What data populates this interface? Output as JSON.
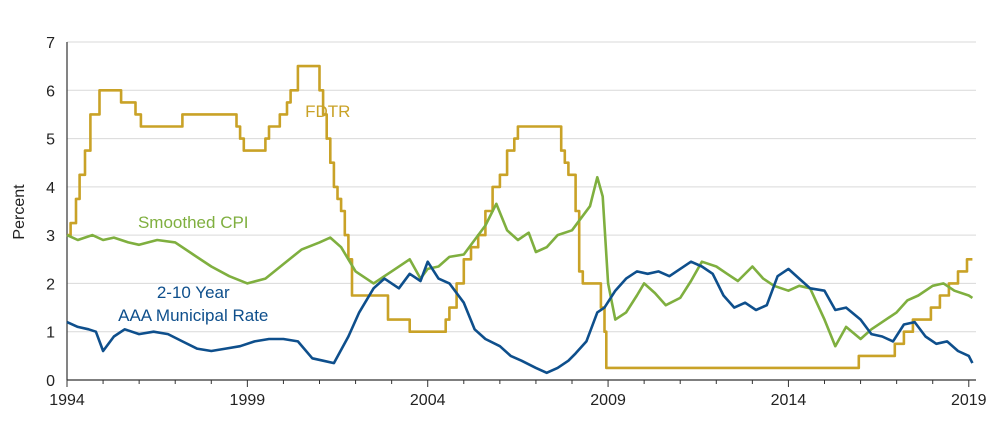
{
  "chart_data": {
    "type": "line",
    "title": "",
    "xlabel": "",
    "ylabel": "Percent",
    "xlim": [
      1994,
      2019.2
    ],
    "ylim": [
      0,
      7
    ],
    "grid": "horizontal",
    "x_ticks": [
      1994,
      1999,
      2004,
      2009,
      2014,
      2019
    ],
    "x_tick_labels": [
      "1994",
      "1999",
      "2004",
      "2009",
      "2014",
      "2019"
    ],
    "y_ticks": [
      0,
      1,
      2,
      3,
      4,
      5,
      6,
      7
    ],
    "y_tick_labels": [
      "0",
      "1",
      "2",
      "3",
      "4",
      "5",
      "6",
      "7"
    ],
    "series": [
      {
        "name": "FDTR",
        "label_lines": [
          "FDTR"
        ],
        "color": "#C9A227",
        "step": true,
        "x": [
          1994.0,
          1994.1,
          1994.25,
          1994.35,
          1994.5,
          1994.65,
          1994.9,
          1995.1,
          1995.5,
          1995.9,
          1996.05,
          1997.2,
          1998.7,
          1998.8,
          1998.9,
          1999.5,
          1999.6,
          1999.9,
          2000.1,
          2000.2,
          2000.4,
          2001.0,
          2001.1,
          2001.2,
          2001.3,
          2001.4,
          2001.5,
          2001.6,
          2001.7,
          2001.8,
          2001.9,
          2002.9,
          2003.5,
          2004.5,
          2004.6,
          2004.8,
          2005.0,
          2005.2,
          2005.4,
          2005.6,
          2005.8,
          2006.0,
          2006.2,
          2006.4,
          2006.5,
          2007.7,
          2007.8,
          2007.9,
          2008.1,
          2008.2,
          2008.3,
          2008.8,
          2008.9,
          2008.95,
          2015.95,
          2016.95,
          2017.2,
          2017.45,
          2017.95,
          2018.2,
          2018.45,
          2018.7,
          2018.95,
          2019.1
        ],
        "y": [
          3.0,
          3.25,
          3.75,
          4.25,
          4.75,
          5.5,
          6.0,
          6.0,
          5.75,
          5.5,
          5.25,
          5.5,
          5.25,
          5.0,
          4.75,
          5.0,
          5.25,
          5.5,
          5.75,
          6.0,
          6.5,
          6.0,
          5.5,
          5.0,
          4.5,
          4.0,
          3.75,
          3.5,
          3.0,
          2.5,
          1.75,
          1.25,
          1.0,
          1.25,
          1.5,
          2.0,
          2.5,
          2.75,
          3.0,
          3.5,
          4.0,
          4.25,
          4.75,
          5.0,
          5.25,
          4.75,
          4.5,
          4.25,
          3.5,
          2.25,
          2.0,
          1.5,
          1.0,
          0.25,
          0.5,
          0.75,
          1.0,
          1.25,
          1.5,
          1.75,
          2.0,
          2.25,
          2.5,
          2.5
        ]
      },
      {
        "name": "Smoothed CPI",
        "label_lines": [
          "Smoothed CPI"
        ],
        "color": "#7FAF3F",
        "step": false,
        "x": [
          1994.0,
          1994.3,
          1994.7,
          1995.0,
          1995.3,
          1995.7,
          1996.0,
          1996.5,
          1997.0,
          1997.5,
          1998.0,
          1998.5,
          1999.0,
          1999.5,
          2000.0,
          2000.5,
          2001.0,
          2001.3,
          2001.6,
          2002.0,
          2002.5,
          2003.0,
          2003.5,
          2003.8,
          2004.0,
          2004.3,
          2004.6,
          2005.0,
          2005.3,
          2005.6,
          2005.9,
          2006.2,
          2006.5,
          2006.8,
          2007.0,
          2007.3,
          2007.6,
          2008.0,
          2008.3,
          2008.5,
          2008.7,
          2008.85,
          2009.0,
          2009.2,
          2009.5,
          2009.8,
          2010.0,
          2010.3,
          2010.6,
          2011.0,
          2011.3,
          2011.6,
          2012.0,
          2012.3,
          2012.6,
          2013.0,
          2013.3,
          2013.6,
          2014.0,
          2014.3,
          2014.6,
          2015.0,
          2015.3,
          2015.6,
          2016.0,
          2016.3,
          2016.6,
          2017.0,
          2017.3,
          2017.6,
          2018.0,
          2018.3,
          2018.6,
          2019.0,
          2019.1
        ],
        "y": [
          3.0,
          2.9,
          3.0,
          2.9,
          2.95,
          2.85,
          2.8,
          2.9,
          2.85,
          2.6,
          2.35,
          2.15,
          2.0,
          2.1,
          2.4,
          2.7,
          2.85,
          2.95,
          2.75,
          2.25,
          2.0,
          2.25,
          2.5,
          2.1,
          2.3,
          2.35,
          2.55,
          2.6,
          2.9,
          3.2,
          3.65,
          3.1,
          2.9,
          3.05,
          2.65,
          2.75,
          3.0,
          3.1,
          3.4,
          3.6,
          4.2,
          3.8,
          2.0,
          1.25,
          1.4,
          1.75,
          2.0,
          1.8,
          1.55,
          1.7,
          2.05,
          2.45,
          2.35,
          2.2,
          2.05,
          2.35,
          2.1,
          1.95,
          1.85,
          1.95,
          1.9,
          1.25,
          0.7,
          1.1,
          0.85,
          1.05,
          1.2,
          1.4,
          1.65,
          1.75,
          1.95,
          2.0,
          1.85,
          1.75,
          1.7
        ]
      },
      {
        "name": "2-10 Year AAA Municipal Rate",
        "label_lines": [
          "2-10 Year",
          "AAA Municipal Rate"
        ],
        "color": "#0E4F8C",
        "step": false,
        "x": [
          1994.0,
          1994.3,
          1994.6,
          1994.8,
          1995.0,
          1995.3,
          1995.6,
          1996.0,
          1996.4,
          1996.8,
          1997.2,
          1997.6,
          1998.0,
          1998.4,
          1998.8,
          1999.2,
          1999.6,
          2000.0,
          2000.4,
          2000.8,
          2001.1,
          2001.4,
          2001.8,
          2002.1,
          2002.5,
          2002.8,
          2003.2,
          2003.5,
          2003.8,
          2004.0,
          2004.3,
          2004.6,
          2005.0,
          2005.3,
          2005.6,
          2006.0,
          2006.3,
          2006.6,
          2007.0,
          2007.3,
          2007.6,
          2007.9,
          2008.1,
          2008.4,
          2008.7,
          2008.9,
          2009.2,
          2009.5,
          2009.8,
          2010.1,
          2010.4,
          2010.7,
          2011.0,
          2011.3,
          2011.6,
          2011.9,
          2012.2,
          2012.5,
          2012.8,
          2013.1,
          2013.4,
          2013.7,
          2014.0,
          2014.3,
          2014.6,
          2015.0,
          2015.3,
          2015.6,
          2016.0,
          2016.3,
          2016.6,
          2016.9,
          2017.2,
          2017.5,
          2017.8,
          2018.1,
          2018.4,
          2018.7,
          2019.0,
          2019.1
        ],
        "y": [
          1.2,
          1.1,
          1.05,
          1.0,
          0.6,
          0.9,
          1.05,
          0.95,
          1.0,
          0.95,
          0.8,
          0.65,
          0.6,
          0.65,
          0.7,
          0.8,
          0.85,
          0.85,
          0.8,
          0.45,
          0.4,
          0.35,
          0.9,
          1.4,
          1.9,
          2.1,
          1.9,
          2.2,
          2.05,
          2.45,
          2.1,
          2.0,
          1.6,
          1.05,
          0.85,
          0.7,
          0.5,
          0.4,
          0.25,
          0.15,
          0.25,
          0.4,
          0.55,
          0.8,
          1.4,
          1.5,
          1.85,
          2.1,
          2.25,
          2.2,
          2.25,
          2.15,
          2.3,
          2.45,
          2.35,
          2.2,
          1.75,
          1.5,
          1.6,
          1.45,
          1.55,
          2.15,
          2.3,
          2.1,
          1.9,
          1.85,
          1.45,
          1.5,
          1.25,
          0.95,
          0.9,
          0.8,
          1.15,
          1.2,
          0.9,
          0.75,
          0.8,
          0.6,
          0.5,
          0.35
        ]
      }
    ]
  }
}
